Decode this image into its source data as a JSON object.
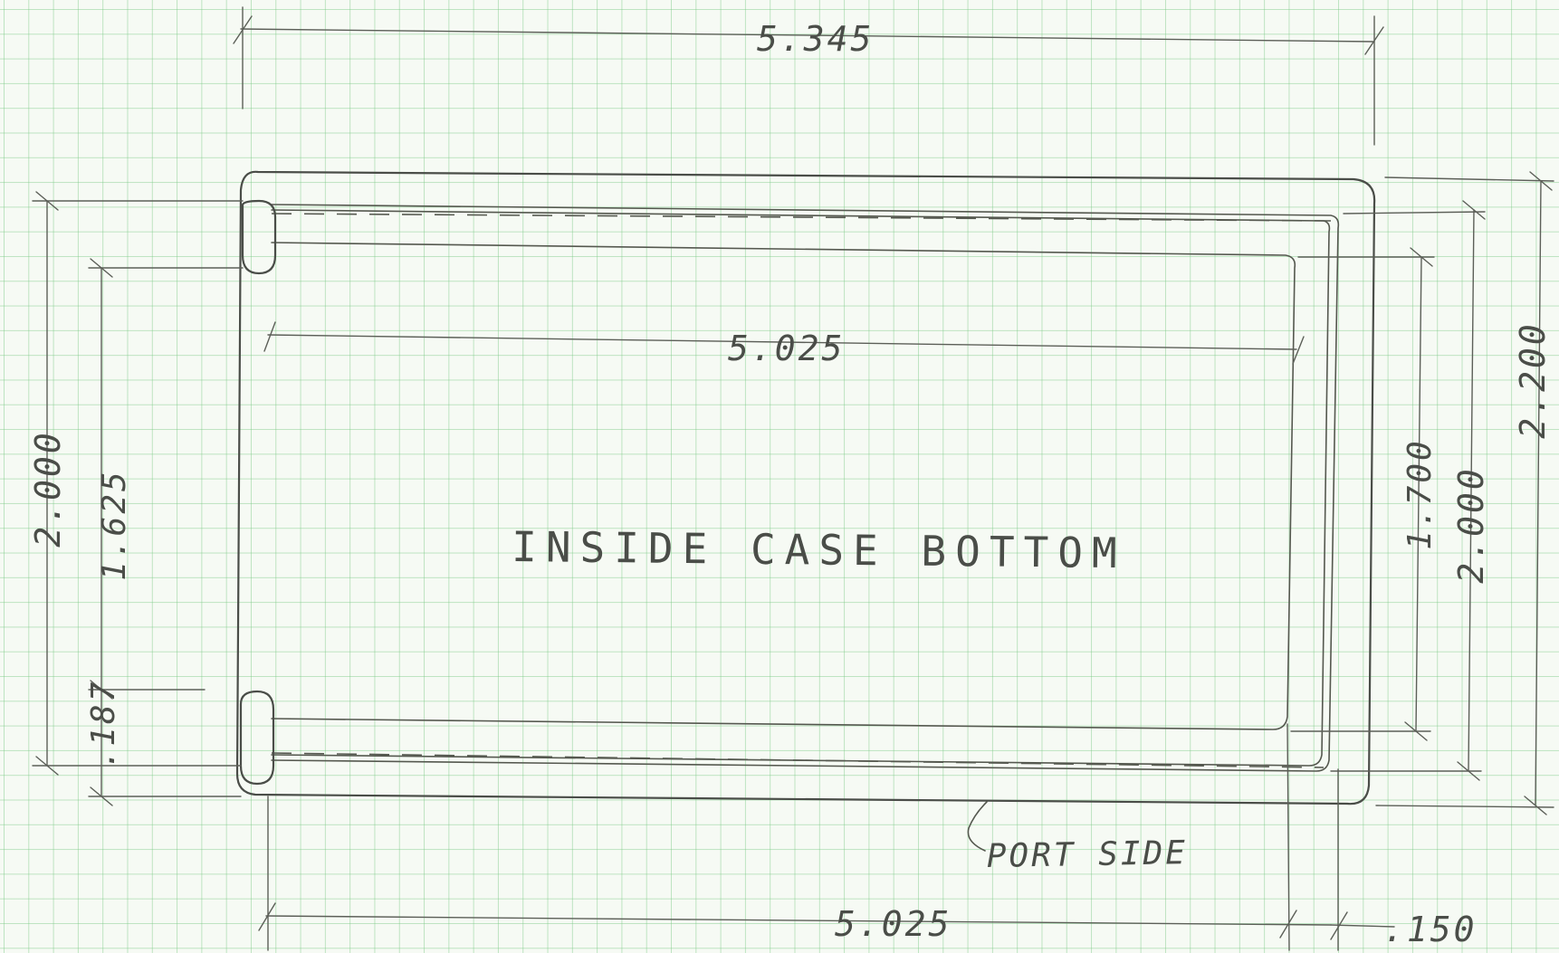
{
  "drawing": {
    "title": "INSIDE CASE BOTTOM",
    "port_note": "PORT SIDE",
    "dimensions": {
      "top_overall_width": "5.345",
      "inner_width": "5.025",
      "bottom_width": "5.025",
      "bottom_offset": ".150",
      "left_height": "2.000",
      "left_inner_height": "1.625",
      "left_offset": ".187",
      "right_outer_height": "2.200",
      "right_height": "2.000",
      "right_inner_height": "1.700"
    },
    "colors": {
      "paper": "#f6faf4",
      "grid": "#78c882",
      "pencil": "#4a4d48"
    }
  }
}
